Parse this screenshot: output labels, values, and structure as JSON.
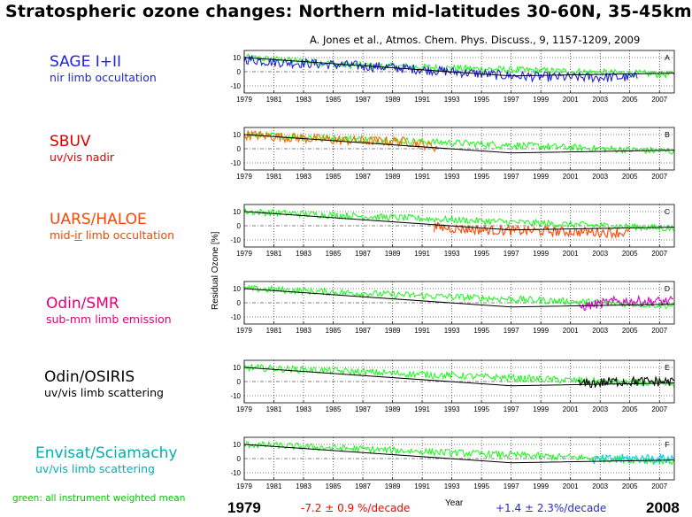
{
  "title": "Stratospheric ozone changes: Northern mid-latitudes 30-60N, 35-45km",
  "citation": "A. Jones et al., Atmos. Chem. Phys. Discuss., 9, 1157-1209, 2009",
  "instruments": [
    {
      "name": "SAGE I+II",
      "desc": "nir limb occultation",
      "color": "#2222dd",
      "panel": "A"
    },
    {
      "name": "SBUV",
      "desc": "uv/vis nadir",
      "color": "#dd0000",
      "panel": "B"
    },
    {
      "name": "UARS/HALOE",
      "desc": "mid-ir limb occultation",
      "desc_pre": "mid-",
      "desc_underlined": "ir",
      "desc_post": " limb occultation",
      "color": "#ff4400",
      "panel": "C"
    },
    {
      "name": "Odin/SMR",
      "desc": "sub-mm limb emission",
      "color": "#e0007a",
      "panel": "D"
    },
    {
      "name": "Odin/OSIRIS",
      "desc": "uv/vis limb scattering",
      "color": "#000000",
      "panel": "E"
    },
    {
      "name": "Envisat/Sciamachy",
      "desc": "uv/vis limb scattering",
      "color": "#00b0b0",
      "panel": "F"
    }
  ],
  "ylabel": "Residual Ozone [%]",
  "footer": {
    "green_note": "green: all instrument weighted mean",
    "start_year": "1979",
    "trend1": "-7.2 ± 0.9 %/decade",
    "xlabel": "Year",
    "trend2": "+1.4 ± 2.3%/decade",
    "end_year": "2008"
  },
  "chart_data": [
    {
      "type": "line",
      "panel": "A",
      "xlim": [
        1979,
        2008
      ],
      "ylim": [
        -15,
        15
      ],
      "xticks": [
        "1979",
        "1981",
        "1983",
        "1985",
        "1987",
        "1989",
        "1991",
        "1993",
        "1995",
        "1997",
        "1999",
        "2001",
        "2003",
        "2005",
        "2007"
      ],
      "yticks": [
        "10",
        "0",
        "-10"
      ],
      "series": [
        {
          "color": "#00ff00",
          "x": [
            1979.0,
            1984.9,
            1985.0,
            2008.0
          ],
          "values": [
            10,
            6,
            5,
            -2
          ]
        },
        {
          "color": "#2222dd",
          "x": [
            1979.0,
            1980.8,
            1985.0,
            1989.0,
            1993.0,
            1997.0,
            2001.0,
            2005.5
          ],
          "values": [
            9,
            7,
            5,
            3,
            0,
            -3,
            -4,
            -4
          ]
        }
      ],
      "trend": {
        "x": [
          1979,
          1997,
          2008
        ],
        "values": [
          10,
          -3,
          -1
        ]
      }
    },
    {
      "type": "line",
      "panel": "B",
      "xlim": [
        1979,
        2008
      ],
      "ylim": [
        -15,
        15
      ],
      "xticks": [
        "1979",
        "1981",
        "1983",
        "1985",
        "1987",
        "1989",
        "1991",
        "1993",
        "1995",
        "1997",
        "1999",
        "2001",
        "2003",
        "2005",
        "2007"
      ],
      "yticks": [
        "10",
        "0",
        "-10"
      ],
      "series": [
        {
          "color": "#00ff00",
          "x": [
            1979.0,
            2008.0
          ],
          "values": [
            10,
            -2
          ]
        },
        {
          "color": "#ff6a00",
          "x": [
            1979.0,
            1985.0,
            1990.0,
            1992.0
          ],
          "values": [
            10,
            6,
            5,
            1
          ]
        }
      ],
      "trend": {
        "x": [
          1979,
          1997,
          2008
        ],
        "values": [
          10,
          -3,
          -1
        ]
      }
    },
    {
      "type": "line",
      "panel": "C",
      "xlim": [
        1979,
        2008
      ],
      "ylim": [
        -15,
        15
      ],
      "xticks": [
        "1979",
        "1981",
        "1983",
        "1985",
        "1987",
        "1989",
        "1991",
        "1993",
        "1995",
        "1997",
        "1999",
        "2001",
        "2003",
        "2005",
        "2007"
      ],
      "yticks": [
        "10",
        "0",
        "-10"
      ],
      "series": [
        {
          "color": "#00ff00",
          "x": [
            1979.0,
            2008.0
          ],
          "values": [
            10,
            -2
          ]
        },
        {
          "color": "#ff4400",
          "x": [
            1991.8,
            1995.0,
            2000.0,
            2005.0
          ],
          "values": [
            -1,
            -3,
            -4,
            -5
          ]
        }
      ],
      "trend": {
        "x": [
          1979,
          1997,
          2008
        ],
        "values": [
          10,
          -3,
          -1
        ]
      }
    },
    {
      "type": "line",
      "panel": "D",
      "xlim": [
        1979,
        2008
      ],
      "ylim": [
        -15,
        15
      ],
      "xticks": [
        "1979",
        "1981",
        "1983",
        "1985",
        "1987",
        "1989",
        "1991",
        "1993",
        "1995",
        "1997",
        "1999",
        "2001",
        "2003",
        "2005",
        "2007"
      ],
      "yticks": [
        "10",
        "0",
        "-10"
      ],
      "series": [
        {
          "color": "#00ff00",
          "x": [
            1979.0,
            2008.0
          ],
          "values": [
            10,
            -2
          ]
        },
        {
          "color": "#e000cc",
          "x": [
            2001.6,
            2004.0,
            2008.0
          ],
          "values": [
            -3,
            1,
            1
          ]
        }
      ],
      "trend": {
        "x": [
          1979,
          1997,
          2008
        ],
        "values": [
          10,
          -3,
          -1
        ]
      }
    },
    {
      "type": "line",
      "panel": "E",
      "xlim": [
        1979,
        2008
      ],
      "ylim": [
        -15,
        15
      ],
      "xticks": [
        "1979",
        "1981",
        "1983",
        "1985",
        "1987",
        "1989",
        "1991",
        "1993",
        "1995",
        "1997",
        "1999",
        "2001",
        "2003",
        "2005",
        "2007"
      ],
      "yticks": [
        "10",
        "0",
        "-10"
      ],
      "series": [
        {
          "color": "#00ff00",
          "x": [
            1979.0,
            2008.0
          ],
          "values": [
            10,
            -2
          ]
        },
        {
          "color": "#000000",
          "x": [
            2001.5,
            2004.0,
            2008.0
          ],
          "values": [
            -2,
            0,
            0
          ]
        }
      ],
      "trend": {
        "x": [
          1979,
          1997,
          2008
        ],
        "values": [
          10,
          -3,
          -1
        ]
      }
    },
    {
      "type": "line",
      "panel": "F",
      "xlim": [
        1979,
        2008
      ],
      "ylim": [
        -15,
        15
      ],
      "xticks": [
        "1979",
        "1981",
        "1983",
        "1985",
        "1987",
        "1989",
        "1991",
        "1993",
        "1995",
        "1997",
        "1999",
        "2001",
        "2003",
        "2005",
        "2007"
      ],
      "yticks": [
        "10",
        "0",
        "-10"
      ],
      "series": [
        {
          "color": "#00ff00",
          "x": [
            1979.0,
            2008.0
          ],
          "values": [
            10,
            -2
          ]
        },
        {
          "color": "#00d8e8",
          "x": [
            2002.5,
            2005.0,
            2008.0
          ],
          "values": [
            -1,
            0,
            0
          ]
        }
      ],
      "trend": {
        "x": [
          1979,
          1997,
          2008
        ],
        "values": [
          10,
          -3,
          -1
        ]
      }
    }
  ]
}
